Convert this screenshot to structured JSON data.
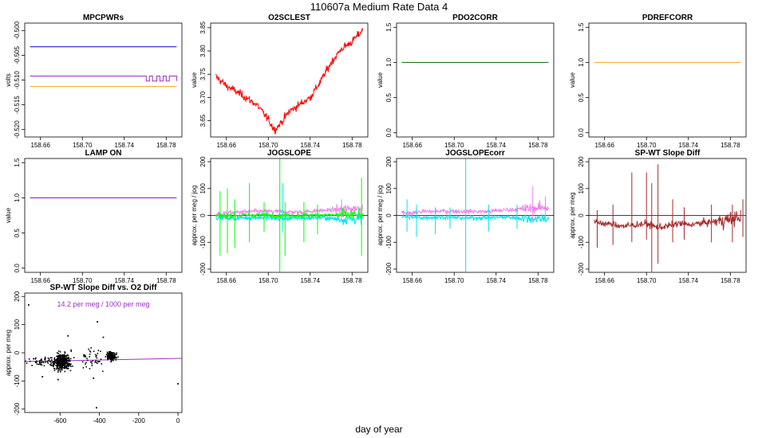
{
  "page": {
    "title": "110607a   Medium Rate Data 4",
    "xlabel": "day of year"
  },
  "colors": {
    "blue": "#0000cc",
    "purple": "#9b30c0",
    "orange": "#f5a623",
    "red": "#ff0000",
    "green": "#006400",
    "violet": "#9400d3",
    "magenta": "#ee82ee",
    "lime": "#00ff00",
    "cyan": "#00e5ee",
    "brown": "#a52a2a"
  },
  "chart_data": [
    {
      "id": "mpcpwrs",
      "type": "line",
      "title": "MPCPWRs",
      "ylabel": "volts",
      "xlim": [
        158.645,
        158.795
      ],
      "ylim": [
        -0.5215,
        -0.4985
      ],
      "xticks": [
        158.66,
        158.7,
        158.74,
        158.78
      ],
      "xtick_labels": [
        "158.66",
        "158.70",
        "158.74",
        "158.78"
      ],
      "yticks": [
        -0.52,
        -0.515,
        -0.51,
        -0.505,
        -0.5
      ],
      "ytick_labels": [
        "-0.520",
        "-0.515",
        "-0.510",
        "-0.505",
        "-0.500"
      ],
      "series": [
        {
          "color": "blue",
          "x": [
            158.65,
            158.79
          ],
          "y": [
            -0.5033,
            -0.5033
          ]
        },
        {
          "color": "purple",
          "x": [
            158.65,
            158.76,
            158.761,
            158.763,
            158.764,
            158.766,
            158.767,
            158.77,
            158.771,
            158.773,
            158.774,
            158.776,
            158.777,
            158.779,
            158.78,
            158.782,
            158.783,
            158.79
          ],
          "y": [
            -0.5092,
            -0.5092,
            -0.5102,
            -0.5102,
            -0.5092,
            -0.5092,
            -0.5102,
            -0.5102,
            -0.5092,
            -0.5092,
            -0.5102,
            -0.5102,
            -0.5092,
            -0.5092,
            -0.5102,
            -0.5102,
            -0.5092,
            -0.5102
          ]
        },
        {
          "color": "orange",
          "x": [
            158.65,
            158.79
          ],
          "y": [
            -0.5113,
            -0.5113
          ]
        }
      ]
    },
    {
      "id": "o2sclest",
      "type": "line",
      "title": "O2SCLEST",
      "ylabel": "value",
      "xlim": [
        158.645,
        158.795
      ],
      "ylim": [
        3.615,
        3.86
      ],
      "xticks": [
        158.66,
        158.7,
        158.74,
        158.78
      ],
      "xtick_labels": [
        "158.66",
        "158.70",
        "158.74",
        "158.78"
      ],
      "yticks": [
        3.65,
        3.7,
        3.75,
        3.8,
        3.85
      ],
      "ytick_labels": [
        "3.65",
        "3.70",
        "3.75",
        "3.80",
        "3.85"
      ],
      "series": [
        {
          "color": "red",
          "x": [
            158.65,
            158.655,
            158.66,
            158.67,
            158.68,
            158.69,
            158.7,
            158.706,
            158.712,
            158.72,
            158.73,
            158.74,
            158.75,
            158.76,
            158.77,
            158.78,
            158.79
          ],
          "y": [
            3.745,
            3.735,
            3.725,
            3.712,
            3.698,
            3.682,
            3.652,
            3.63,
            3.645,
            3.67,
            3.685,
            3.7,
            3.735,
            3.775,
            3.805,
            3.82,
            3.845
          ]
        }
      ]
    },
    {
      "id": "pdo2corr",
      "type": "line",
      "title": "PDO2CORR",
      "ylabel": "value",
      "xlim": [
        158.645,
        158.795
      ],
      "ylim": [
        -0.06,
        1.56
      ],
      "xticks": [
        158.66,
        158.7,
        158.74,
        158.78
      ],
      "xtick_labels": [
        "158.66",
        "158.70",
        "158.74",
        "158.78"
      ],
      "yticks": [
        0,
        0.5,
        1.0,
        1.5
      ],
      "ytick_labels": [
        "0.0",
        "0.5",
        "1.0",
        "1.5"
      ],
      "series": [
        {
          "color": "green",
          "x": [
            158.65,
            158.79
          ],
          "y": [
            1.0,
            1.0
          ]
        }
      ]
    },
    {
      "id": "pdrefcorr",
      "type": "line",
      "title": "PDREFCORR",
      "ylabel": "value",
      "xlim": [
        158.645,
        158.795
      ],
      "ylim": [
        -0.06,
        1.56
      ],
      "xticks": [
        158.66,
        158.7,
        158.74,
        158.78
      ],
      "xtick_labels": [
        "158.66",
        "158.70",
        "158.74",
        "158.78"
      ],
      "yticks": [
        0,
        0.5,
        1.0,
        1.5
      ],
      "ytick_labels": [
        "0.0",
        "0.5",
        "1.0",
        "1.5"
      ],
      "series": [
        {
          "color": "orange",
          "x": [
            158.65,
            158.79
          ],
          "y": [
            1.0,
            1.0
          ]
        }
      ]
    },
    {
      "id": "lampon",
      "type": "line",
      "title": "LAMP ON",
      "ylabel": "value",
      "xlim": [
        158.645,
        158.795
      ],
      "ylim": [
        -0.06,
        1.56
      ],
      "xticks": [
        158.66,
        158.7,
        158.74,
        158.78
      ],
      "xtick_labels": [
        "158.66",
        "158.70",
        "158.74",
        "158.78"
      ],
      "yticks": [
        0,
        0.5,
        1.0,
        1.5
      ],
      "ytick_labels": [
        "0.0",
        "0.5",
        "1.0",
        "1.5"
      ],
      "series": [
        {
          "color": "violet",
          "x": [
            158.65,
            158.79
          ],
          "y": [
            1.0,
            1.0
          ]
        }
      ]
    },
    {
      "id": "jogslope",
      "type": "line",
      "title": "JOGSLOPE",
      "ylabel": "approx. per meg / jog",
      "xlim": [
        158.645,
        158.795
      ],
      "ylim": [
        -212,
        212
      ],
      "xticks": [
        158.66,
        158.7,
        158.74,
        158.78
      ],
      "xtick_labels": [
        "158.66",
        "158.70",
        "158.74",
        "158.78"
      ],
      "yticks": [
        -200,
        -100,
        0,
        100,
        200
      ],
      "ytick_labels": [
        "-200",
        "-100",
        "0",
        "100",
        "200"
      ],
      "zero_line": true,
      "series": [
        {
          "color": "magenta",
          "x": [
            158.65,
            158.67,
            158.69,
            158.71,
            158.73,
            158.75,
            158.77,
            158.79
          ],
          "y": [
            5,
            12,
            15,
            14,
            12,
            18,
            22,
            28
          ]
        },
        {
          "color": "cyan",
          "x": [
            158.65,
            158.67,
            158.69,
            158.71,
            158.73,
            158.75,
            158.77,
            158.79
          ],
          "y": [
            -8,
            -10,
            -7,
            -12,
            -10,
            -8,
            -15,
            -12
          ]
        },
        {
          "color": "lime",
          "x": [
            158.65,
            158.67,
            158.69,
            158.71,
            158.73,
            158.75,
            158.77,
            158.79
          ],
          "y": [
            -2,
            0,
            2,
            -1,
            0,
            2,
            1,
            2
          ]
        }
      ],
      "spikes": [
        {
          "color": "lime",
          "x": 158.654,
          "lo": -150,
          "hi": 90
        },
        {
          "color": "lime",
          "x": 158.661,
          "lo": -140,
          "hi": 100
        },
        {
          "color": "lime",
          "x": 158.668,
          "lo": -120,
          "hi": 60
        },
        {
          "color": "lime",
          "x": 158.682,
          "lo": -100,
          "hi": 120
        },
        {
          "color": "lime",
          "x": 158.696,
          "lo": -60,
          "hi": 50
        },
        {
          "color": "lime",
          "x": 158.711,
          "lo": -210,
          "hi": 210
        },
        {
          "color": "lime",
          "x": 158.716,
          "lo": -150,
          "hi": 50
        },
        {
          "color": "lime",
          "x": 158.734,
          "lo": -100,
          "hi": 50
        },
        {
          "color": "lime",
          "x": 158.747,
          "lo": -70,
          "hi": 40
        },
        {
          "color": "lime",
          "x": 158.789,
          "lo": -150,
          "hi": 140
        },
        {
          "color": "cyan",
          "x": 158.714,
          "lo": -60,
          "hi": 120
        },
        {
          "color": "magenta",
          "x": 158.77,
          "lo": -20,
          "hi": 60
        }
      ]
    },
    {
      "id": "jogslopecorr",
      "type": "line",
      "title": "JOGSLOPEcorr",
      "ylabel": "approx. per meg / jog",
      "xlim": [
        158.645,
        158.795
      ],
      "ylim": [
        -212,
        212
      ],
      "xticks": [
        158.66,
        158.7,
        158.74,
        158.78
      ],
      "xtick_labels": [
        "158.66",
        "158.70",
        "158.74",
        "158.78"
      ],
      "yticks": [
        -200,
        -100,
        0,
        100,
        200
      ],
      "ytick_labels": [
        "-200",
        "-100",
        "0",
        "100",
        "200"
      ],
      "zero_line": true,
      "series": [
        {
          "color": "magenta",
          "x": [
            158.65,
            158.67,
            158.69,
            158.71,
            158.73,
            158.75,
            158.77,
            158.79
          ],
          "y": [
            8,
            14,
            16,
            15,
            14,
            20,
            25,
            30
          ]
        },
        {
          "color": "cyan",
          "x": [
            158.65,
            158.67,
            158.69,
            158.71,
            158.73,
            158.75,
            158.77,
            158.79
          ],
          "y": [
            -5,
            -8,
            -6,
            -10,
            -8,
            -6,
            -12,
            -10
          ]
        }
      ],
      "spikes": [
        {
          "color": "cyan",
          "x": 158.655,
          "lo": -60,
          "hi": 60
        },
        {
          "color": "cyan",
          "x": 158.664,
          "lo": -80,
          "hi": 40
        },
        {
          "color": "cyan",
          "x": 158.682,
          "lo": -70,
          "hi": 30
        },
        {
          "color": "cyan",
          "x": 158.696,
          "lo": -50,
          "hi": 30
        },
        {
          "color": "cyan",
          "x": 158.711,
          "lo": -210,
          "hi": 210
        },
        {
          "color": "cyan",
          "x": 158.733,
          "lo": -60,
          "hi": 40
        },
        {
          "color": "cyan",
          "x": 158.76,
          "lo": -50,
          "hi": 40
        },
        {
          "color": "magenta",
          "x": 158.775,
          "lo": -20,
          "hi": 110
        },
        {
          "color": "magenta",
          "x": 158.787,
          "lo": -10,
          "hi": 70
        }
      ]
    },
    {
      "id": "spwtslopediff",
      "type": "line",
      "title": "SP-WT Slope Diff",
      "ylabel": "approx. per meg",
      "xlim": [
        158.645,
        158.795
      ],
      "ylim": [
        -212,
        212
      ],
      "xticks": [
        158.66,
        158.7,
        158.74,
        158.78
      ],
      "xtick_labels": [
        "158.66",
        "158.70",
        "158.74",
        "158.78"
      ],
      "yticks": [
        -200,
        -100,
        0,
        100,
        200
      ],
      "ytick_labels": [
        "-200",
        "-100",
        "0",
        "100",
        "200"
      ],
      "zero_line": true,
      "series": [
        {
          "color": "brown",
          "x": [
            158.65,
            158.66,
            158.67,
            158.68,
            158.69,
            158.7,
            158.71,
            158.72,
            158.73,
            158.74,
            158.75,
            158.76,
            158.77,
            158.78,
            158.79
          ],
          "y": [
            -25,
            -30,
            -35,
            -40,
            -35,
            -30,
            -45,
            -40,
            -30,
            -35,
            -30,
            -25,
            -20,
            -15,
            -5
          ]
        }
      ],
      "spikes": [
        {
          "color": "brown",
          "x": 158.653,
          "lo": -120,
          "hi": 20
        },
        {
          "color": "brown",
          "x": 158.668,
          "lo": -110,
          "hi": 40
        },
        {
          "color": "brown",
          "x": 158.686,
          "lo": -100,
          "hi": 160
        },
        {
          "color": "brown",
          "x": 158.7,
          "lo": -90,
          "hi": 160
        },
        {
          "color": "brown",
          "x": 158.705,
          "lo": -210,
          "hi": 120
        },
        {
          "color": "brown",
          "x": 158.711,
          "lo": -180,
          "hi": 190
        },
        {
          "color": "brown",
          "x": 158.725,
          "lo": -100,
          "hi": 60
        },
        {
          "color": "brown",
          "x": 158.736,
          "lo": -90,
          "hi": 30
        },
        {
          "color": "brown",
          "x": 158.762,
          "lo": -100,
          "hi": 40
        },
        {
          "color": "brown",
          "x": 158.782,
          "lo": -100,
          "hi": 40
        },
        {
          "color": "brown",
          "x": 158.792,
          "lo": -80,
          "hi": 60
        }
      ]
    },
    {
      "id": "scatter",
      "type": "scatter",
      "title": "SP-WT Slope Diff vs. O2 Diff",
      "ylabel": "approx. per meg",
      "annotation": "14.2 per meg / 1000 per meg",
      "xlim": [
        -780,
        20
      ],
      "ylim": [
        -212,
        212
      ],
      "xticks": [
        -600,
        -400,
        -200,
        0
      ],
      "xtick_labels": [
        "-600",
        "-400",
        "-200",
        "0"
      ],
      "yticks": [
        -200,
        -100,
        0,
        100,
        200
      ],
      "ytick_labels": [
        "-200",
        "-100",
        "0",
        "100",
        "200"
      ],
      "fit": {
        "color": "purple",
        "slope": 0.0142,
        "intercept": -20
      },
      "clusters": [
        {
          "cx": -590,
          "cy": -30,
          "sx": 30,
          "sy": 22,
          "n": 340
        },
        {
          "cx": -340,
          "cy": -12,
          "sx": 18,
          "sy": 10,
          "n": 140
        },
        {
          "cx": -700,
          "cy": -30,
          "sx": 45,
          "sy": 12,
          "n": 50
        },
        {
          "cx": -440,
          "cy": -20,
          "sx": 40,
          "sy": 30,
          "n": 45
        }
      ],
      "points": [
        {
          "x": -760,
          "y": 170
        },
        {
          "x": -410,
          "y": 110
        },
        {
          "x": -415,
          "y": -195
        },
        {
          "x": 0,
          "y": -110
        },
        {
          "x": -560,
          "y": 60
        },
        {
          "x": -690,
          "y": -85
        },
        {
          "x": -380,
          "y": 55
        },
        {
          "x": -430,
          "y": -90
        },
        {
          "x": -610,
          "y": -95
        }
      ]
    }
  ]
}
